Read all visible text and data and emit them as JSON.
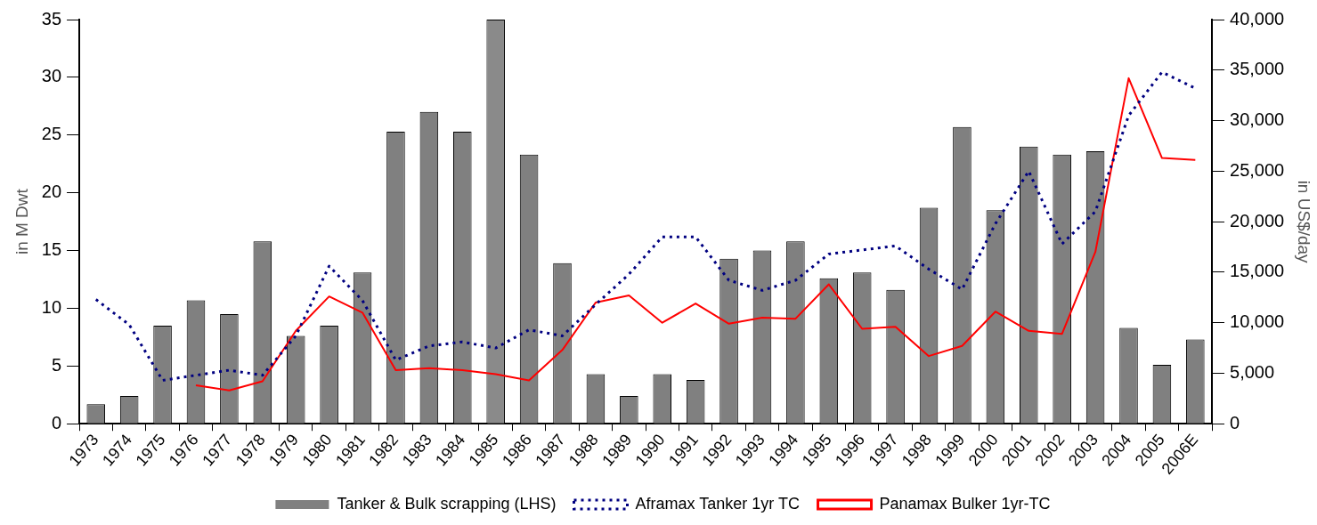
{
  "chart_data": {
    "type": "bar",
    "ylabel": "in M Dwt",
    "y2label": "in US$/day",
    "categories": [
      "1973",
      "1974",
      "1975",
      "1976",
      "1977",
      "1978",
      "1979",
      "1980",
      "1981",
      "1982",
      "1983",
      "1984",
      "1985",
      "1986",
      "1987",
      "1988",
      "1989",
      "1990",
      "1991",
      "1992",
      "1993",
      "1994",
      "1995",
      "1996",
      "1997",
      "1998",
      "1999",
      "2000",
      "2001",
      "2002",
      "2003",
      "2004",
      "2005",
      "2006E"
    ],
    "series": [
      {
        "name": "Tanker & Bulk scrapping (LHS)",
        "color": "#808080",
        "colors": [
          "#808080",
          "#808080",
          "#808080",
          "#808080",
          "#808080",
          "#808080",
          "#808080",
          "#808080",
          "#808080",
          "#808080",
          "#808080",
          "#808080",
          "#8a8a8a",
          "#808080",
          "#808080",
          "#808080",
          "#808080",
          "#808080",
          "#808080",
          "#808080",
          "#808080",
          "#808080",
          "#808080",
          "#808080",
          "#808080",
          "#808080",
          "#808080",
          "#808080",
          "#808080",
          "#808080",
          "#808080",
          "#808080",
          "#808080",
          "#808080"
        ],
        "values": [
          1.7,
          2.4,
          8.5,
          10.7,
          9.5,
          15.8,
          7.6,
          8.5,
          13.1,
          25.3,
          27,
          25.3,
          35,
          23.3,
          13.9,
          4.3,
          2.4,
          4.3,
          3.8,
          14.3,
          15,
          15.8,
          12.6,
          13.1,
          11.6,
          18.7,
          25.7,
          18.5,
          24,
          23.3,
          23.6,
          8.3,
          5.1,
          7.3
        ]
      },
      {
        "name": "Aframax Tanker 1yr TC",
        "type": "line",
        "axis": "y2",
        "color": "#000080",
        "line_style": "dotted",
        "values": [
          12300,
          9800,
          4300,
          4800,
          5300,
          4800,
          8700,
          15600,
          12200,
          6300,
          7700,
          8100,
          7500,
          9300,
          8700,
          11800,
          14800,
          18500,
          18500,
          14200,
          13200,
          14200,
          16800,
          17200,
          17600,
          15300,
          13300,
          19800,
          25000,
          17800,
          21000,
          30500,
          34800,
          33200
        ]
      },
      {
        "name": "Panamax Bulker 1yr-TC",
        "type": "line",
        "axis": "y2",
        "color": "#ff0000",
        "line_style": "solid",
        "values": [
          null,
          null,
          null,
          3800,
          3300,
          4200,
          9200,
          12600,
          11000,
          5300,
          5500,
          5300,
          4900,
          4300,
          7300,
          12000,
          12700,
          10000,
          11900,
          9900,
          10500,
          10400,
          13800,
          9400,
          9600,
          6700,
          7700,
          11100,
          9200,
          8900,
          17000,
          34200,
          26300,
          26100
        ]
      }
    ],
    "ylim": [
      0,
      35
    ],
    "yticks": [
      0,
      5,
      10,
      15,
      20,
      25,
      30,
      35
    ],
    "y2lim": [
      0,
      40000
    ],
    "y2ticks": [
      {
        "value": 0,
        "label": "0"
      },
      {
        "value": 5000,
        "label": "5,000"
      },
      {
        "value": 10000,
        "label": "10,000"
      },
      {
        "value": 15000,
        "label": "15,000"
      },
      {
        "value": 20000,
        "label": "20,000"
      },
      {
        "value": 25000,
        "label": "25,000"
      },
      {
        "value": 30000,
        "label": "30,000"
      },
      {
        "value": 35000,
        "label": "35,000"
      },
      {
        "value": 40000,
        "label": "40,000"
      }
    ],
    "grid": false,
    "legend": "bottom",
    "marker": "none"
  }
}
